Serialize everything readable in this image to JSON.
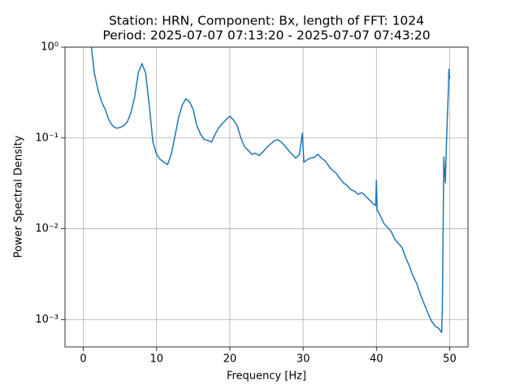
{
  "chart_data": {
    "type": "line",
    "title": [
      "Station: HRN, Component: Bx, length of FFT: 1024",
      "Period: 2025-07-07 07:13:20 - 2025-07-07 07:43:20"
    ],
    "x_label": "Frequency [Hz]",
    "y_label": "Power Spectral Density",
    "yscale": "log",
    "grid": true,
    "color": "#1f77b4",
    "xlim": [
      -2.5,
      52.5
    ],
    "ylim": [
      0.0005,
      1
    ],
    "xticks": [
      0,
      10,
      20,
      30,
      40,
      50
    ],
    "yticks": [
      {
        "value": 0.001,
        "label": "10⁻³"
      },
      {
        "value": 0.01,
        "label": "10⁻²"
      },
      {
        "value": 0.1,
        "label": "10⁻¹"
      },
      {
        "value": 1,
        "label": "10⁰"
      }
    ],
    "x": [
      1.1,
      1.5,
      2,
      2.5,
      3,
      3.5,
      4,
      4.5,
      5,
      5.5,
      6,
      6.5,
      7,
      7.5,
      8,
      8.5,
      9,
      9.5,
      10,
      10.5,
      11,
      11.5,
      12,
      12.5,
      13,
      13.5,
      14,
      14.5,
      15,
      15.5,
      16,
      16.5,
      17,
      17.5,
      18,
      18.5,
      19,
      19.5,
      20,
      20.5,
      21,
      21.5,
      22,
      22.5,
      23,
      23.5,
      24,
      24.5,
      25,
      25.5,
      26,
      26.5,
      27,
      27.5,
      28,
      28.5,
      29,
      29.5,
      29.9,
      30.1,
      30.5,
      31,
      31.5,
      32,
      32.5,
      33,
      33.5,
      34,
      34.5,
      35,
      35.5,
      36,
      36.5,
      37,
      37.5,
      38,
      38.5,
      39,
      39.5,
      39.9,
      40,
      40.1,
      40.5,
      41,
      41.5,
      42,
      42.5,
      43,
      43.5,
      44,
      44.5,
      45,
      45.5,
      46,
      46.5,
      47,
      47.5,
      48,
      48.5,
      48.9,
      49,
      49.2,
      49.4,
      49.6,
      49.8,
      49.9,
      50
    ],
    "values": [
      1.0,
      0.52,
      0.34,
      0.25,
      0.205,
      0.157,
      0.136,
      0.128,
      0.13,
      0.136,
      0.15,
      0.19,
      0.28,
      0.52,
      0.66,
      0.52,
      0.23,
      0.09,
      0.066,
      0.058,
      0.054,
      0.051,
      0.066,
      0.104,
      0.167,
      0.23,
      0.27,
      0.25,
      0.205,
      0.136,
      0.11,
      0.096,
      0.094,
      0.09,
      0.11,
      0.13,
      0.145,
      0.16,
      0.174,
      0.157,
      0.136,
      0.1,
      0.08,
      0.073,
      0.066,
      0.068,
      0.064,
      0.07,
      0.078,
      0.085,
      0.092,
      0.096,
      0.09,
      0.082,
      0.073,
      0.066,
      0.06,
      0.066,
      0.113,
      0.054,
      0.057,
      0.06,
      0.061,
      0.066,
      0.06,
      0.056,
      0.049,
      0.044,
      0.041,
      0.036,
      0.032,
      0.03,
      0.027,
      0.026,
      0.024,
      0.025,
      0.023,
      0.021,
      0.019,
      0.018,
      0.034,
      0.016,
      0.0142,
      0.0115,
      0.0104,
      0.0094,
      0.0077,
      0.0069,
      0.0062,
      0.0048,
      0.0039,
      0.003,
      0.0025,
      0.0019,
      0.0015,
      0.0012,
      0.00097,
      0.00085,
      0.0008,
      0.00072,
      0.0013,
      0.062,
      0.032,
      0.11,
      0.3,
      0.57,
      0.45
    ]
  }
}
